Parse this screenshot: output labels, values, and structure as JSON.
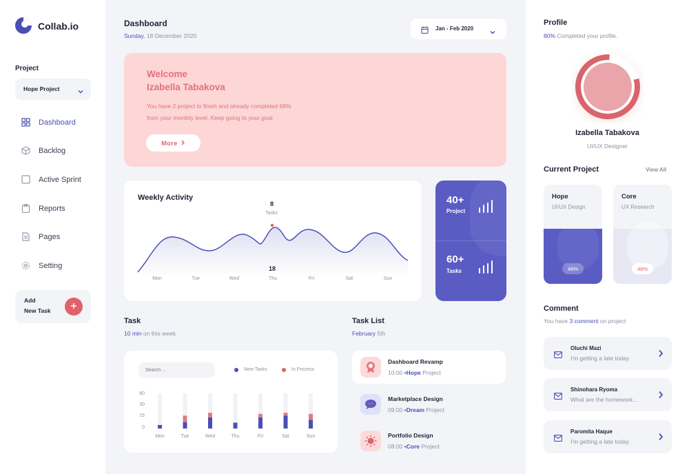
{
  "app": {
    "name": "Collab.io"
  },
  "sidebar": {
    "project_label": "Project",
    "project_select": "Hope Project",
    "items": [
      {
        "label": "Dashboard",
        "icon": "grid-icon"
      },
      {
        "label": "Backlog",
        "icon": "cube-icon"
      },
      {
        "label": "Active Sprint",
        "icon": "square-icon"
      },
      {
        "label": "Reports",
        "icon": "clipboard-icon"
      },
      {
        "label": "Pages",
        "icon": "document-icon"
      },
      {
        "label": "Setting",
        "icon": "gear-icon"
      }
    ],
    "add_task": {
      "line1": "Add",
      "line2": "New Task"
    }
  },
  "header": {
    "title": "Dashboard",
    "date_day": "Sunday",
    "date_rest": ", 18 December 2020",
    "range": "Jan - Feb 2020"
  },
  "welcome": {
    "line1": "Welcome",
    "line2": "Izabella Tabakova",
    "text1": "You have 2 project to finish and already completed 68%",
    "text2": "from your monthly level. Keep going to your goal.",
    "button": "More"
  },
  "weekly": {
    "title": "Weekly Activity",
    "peak_value": "8",
    "peak_label": "Tasks",
    "low_value": "18",
    "days": [
      "Mon",
      "Tue",
      "Wed",
      "Thu",
      "Fri",
      "Sat",
      "Sun"
    ]
  },
  "stats": [
    {
      "value": "40+",
      "label": "Project"
    },
    {
      "value": "60+",
      "label": "Tasks"
    }
  ],
  "task": {
    "title": "Task",
    "sub_highlight": "10 min",
    "sub_rest": " on this week",
    "search_placeholder": "Search ...",
    "legend": [
      {
        "name": "New Tasks",
        "color": "#4a4fb5"
      },
      {
        "name": "In Process",
        "color": "#e0626a"
      }
    ]
  },
  "chart_data": {
    "type": "bar",
    "stacked": true,
    "categories": [
      "Mon",
      "Tue",
      "Wed",
      "Thu",
      "Fri",
      "Sat",
      "Sun"
    ],
    "yticks": [
      "60",
      "30",
      "15",
      "0"
    ],
    "ylim": [
      0,
      60
    ],
    "series": [
      {
        "name": "New Tasks",
        "values": [
          6,
          11,
          19,
          10,
          19,
          22,
          15
        ]
      },
      {
        "name": "In Process",
        "values": [
          0,
          11,
          8,
          0,
          6,
          5,
          10
        ]
      }
    ]
  },
  "tasklist": {
    "title": "Task List",
    "sub_highlight": "February",
    "sub_rest": " 5th",
    "items": [
      {
        "title": "Dashboard Revamp",
        "time": "10:00",
        "project": "Hope",
        "suffix": " Project",
        "icon": "badge-icon"
      },
      {
        "title": "Marketplace Design",
        "time": "09:00",
        "project": "Dream",
        "suffix": " Project",
        "icon": "chat-bubble-icon"
      },
      {
        "title": "Portfolio Design",
        "time": "08:00",
        "project": "Core",
        "suffix": " Project",
        "icon": "sun-icon"
      }
    ]
  },
  "profile": {
    "title": "Profile",
    "percent": "80%",
    "percent_rest": " Completed your profile.",
    "progress": 0.8,
    "name": "Izabella Tabakova",
    "role": "UI/UX Designer"
  },
  "current_project": {
    "title": "Current Project",
    "view_all": "View All",
    "items": [
      {
        "name": "Hope",
        "category": "UI/UX Design",
        "progress": "48%"
      },
      {
        "name": "Core",
        "category": "UX Research",
        "progress": "48%"
      }
    ]
  },
  "comment": {
    "title": "Comment",
    "sub_pre": "You have ",
    "sub_count": "3 comment",
    "sub_post": " on project",
    "items": [
      {
        "name": "Oluchi Mazi",
        "message": "I'm getting a late today"
      },
      {
        "name": "Shinohara Ryoma",
        "message": "What are the homework..."
      },
      {
        "name": "Paromita Haque",
        "message": "I'm getting a late today"
      }
    ]
  },
  "colors": {
    "accent": "#4a4fb5",
    "pink": "#e0626a",
    "pink_bg": "#fdd6d6"
  }
}
